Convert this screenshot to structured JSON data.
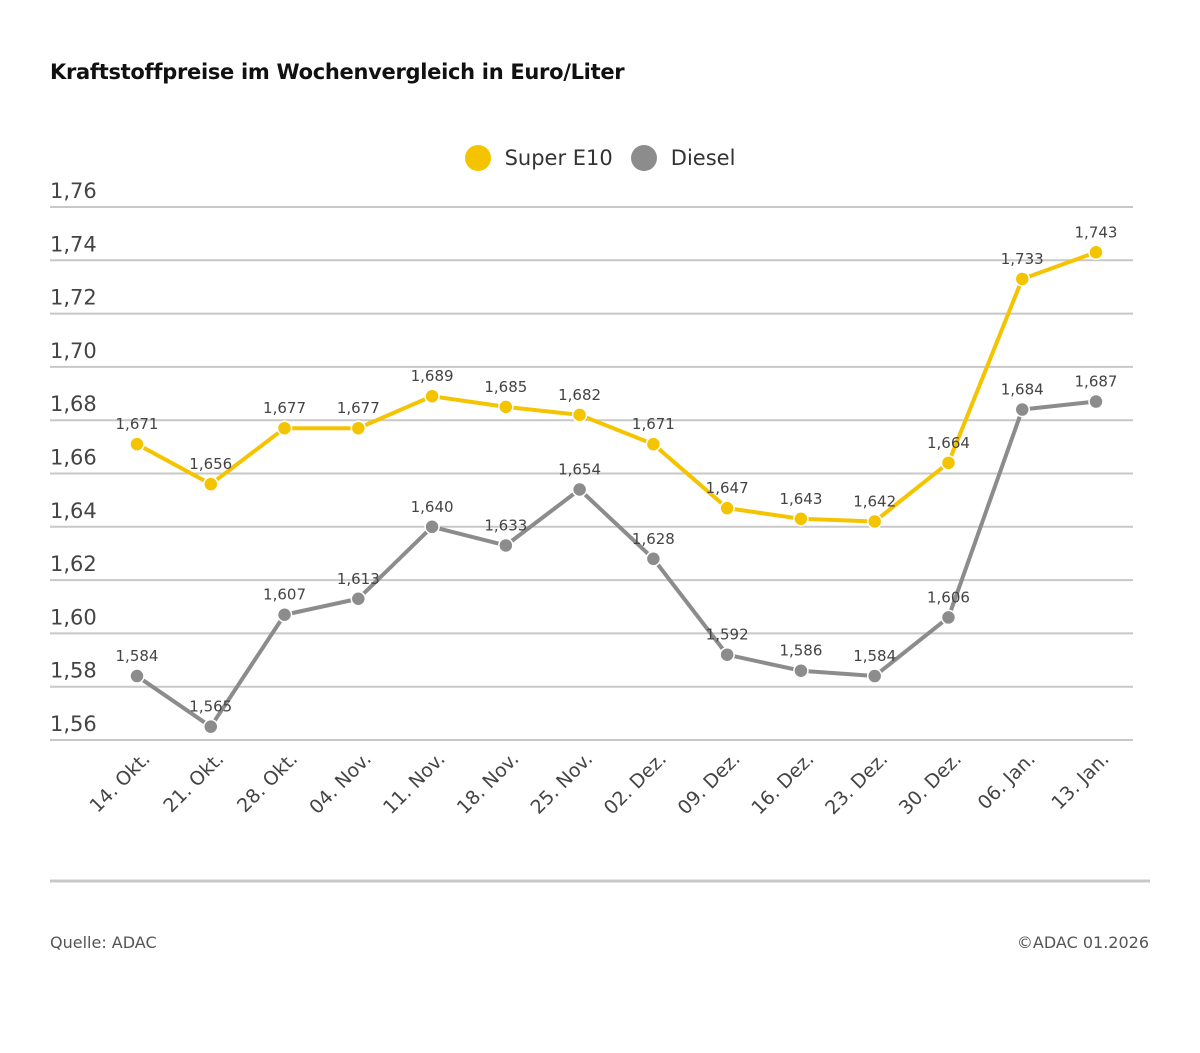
{
  "chart_data": {
    "type": "line",
    "title": "Kraftstoffpreise im Wochenvergleich in Euro/Liter",
    "categories": [
      "14. Okt.",
      "21. Okt.",
      "28. Okt.",
      "04. Nov.",
      "11. Nov.",
      "18. Nov.",
      "25. Nov.",
      "02. Dez.",
      "09. Dez.",
      "16. Dez.",
      "23. Dez.",
      "30. Dez.",
      "06. Jan.",
      "13. Jan."
    ],
    "series": [
      {
        "name": "Super E10",
        "color": "#f5c400",
        "values": [
          1.671,
          1.656,
          1.677,
          1.677,
          1.689,
          1.685,
          1.682,
          1.671,
          1.647,
          1.643,
          1.642,
          1.664,
          1.733,
          1.743
        ]
      },
      {
        "name": "Diesel",
        "color": "#8c8c8c",
        "values": [
          1.584,
          1.565,
          1.607,
          1.613,
          1.64,
          1.633,
          1.654,
          1.628,
          1.592,
          1.586,
          1.584,
          1.606,
          1.684,
          1.687
        ]
      }
    ],
    "ylim": [
      1.56,
      1.76
    ],
    "yticks": [
      "1,76",
      "1,74",
      "1,72",
      "1,70",
      "1,68",
      "1,66",
      "1,64",
      "1,62",
      "1,60",
      "1,58",
      "1,56"
    ],
    "grid": true,
    "legend_position": "top-center",
    "decimal_separator": ","
  },
  "footer": {
    "source": "Quelle: ADAC",
    "copyright": "©ADAC 01.2026"
  }
}
